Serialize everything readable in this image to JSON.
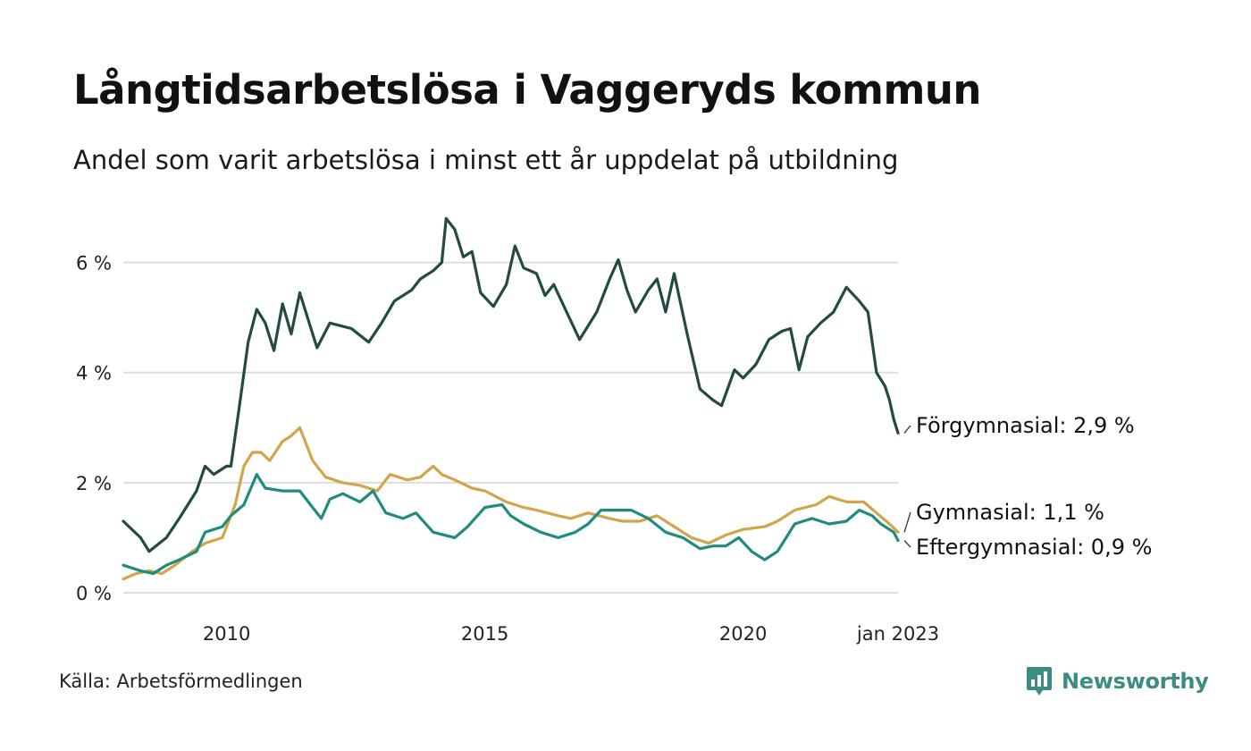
{
  "title": "Långtidsarbetslösa i Vaggeryds kommun",
  "subtitle": "Andel som varit arbetslösa i minst ett år uppdelat på utbildning",
  "source": "Källa: Arbetsförmedlingen",
  "brand": {
    "name": "Newsworthy",
    "logo_icon": "chart-bubble-icon",
    "color": "#3d8c84"
  },
  "chart_data": {
    "type": "line",
    "x_ticks": [
      {
        "label": "2010",
        "value": "2010-01"
      },
      {
        "label": "2015",
        "value": "2015-01"
      },
      {
        "label": "2020",
        "value": "2020-01"
      },
      {
        "label": "jan 2023",
        "value": "2023-01"
      }
    ],
    "y_ticks": [
      "0 %",
      "2 %",
      "4 %",
      "6 %"
    ],
    "ylim": [
      0,
      7
    ],
    "grid": "horizontal",
    "x_start": "2008-01",
    "x_end": "2023-01",
    "series": [
      {
        "name": "Förgymnasial",
        "end_label": "Förgymnasial: 2,9 %",
        "color": "#234a44",
        "keypoints": [
          [
            "2008-01",
            1.3
          ],
          [
            "2008-05",
            1.0
          ],
          [
            "2008-07",
            0.75
          ],
          [
            "2008-11",
            1.0
          ],
          [
            "2009-02",
            1.35
          ],
          [
            "2009-06",
            1.85
          ],
          [
            "2009-08",
            2.3
          ],
          [
            "2009-10",
            2.15
          ],
          [
            "2010-01",
            2.3
          ],
          [
            "2010-02",
            2.3
          ],
          [
            "2010-04",
            3.4
          ],
          [
            "2010-06",
            4.55
          ],
          [
            "2010-08",
            5.15
          ],
          [
            "2010-10",
            4.9
          ],
          [
            "2010-12",
            4.4
          ],
          [
            "2011-02",
            5.25
          ],
          [
            "2011-04",
            4.7
          ],
          [
            "2011-06",
            5.45
          ],
          [
            "2011-08",
            4.95
          ],
          [
            "2011-10",
            4.45
          ],
          [
            "2012-01",
            4.9
          ],
          [
            "2012-06",
            4.8
          ],
          [
            "2012-10",
            4.55
          ],
          [
            "2013-01",
            4.9
          ],
          [
            "2013-04",
            5.3
          ],
          [
            "2013-08",
            5.5
          ],
          [
            "2013-10",
            5.7
          ],
          [
            "2014-01",
            5.85
          ],
          [
            "2014-03",
            6.0
          ],
          [
            "2014-04",
            6.8
          ],
          [
            "2014-06",
            6.6
          ],
          [
            "2014-08",
            6.1
          ],
          [
            "2014-10",
            6.2
          ],
          [
            "2014-12",
            5.45
          ],
          [
            "2015-03",
            5.2
          ],
          [
            "2015-06",
            5.6
          ],
          [
            "2015-08",
            6.3
          ],
          [
            "2015-10",
            5.9
          ],
          [
            "2016-01",
            5.8
          ],
          [
            "2016-03",
            5.4
          ],
          [
            "2016-05",
            5.6
          ],
          [
            "2016-08",
            5.1
          ],
          [
            "2016-11",
            4.6
          ],
          [
            "2017-03",
            5.1
          ],
          [
            "2017-06",
            5.7
          ],
          [
            "2017-08",
            6.05
          ],
          [
            "2017-10",
            5.5
          ],
          [
            "2017-12",
            5.1
          ],
          [
            "2018-03",
            5.5
          ],
          [
            "2018-05",
            5.7
          ],
          [
            "2018-07",
            5.1
          ],
          [
            "2018-09",
            5.8
          ],
          [
            "2018-12",
            4.7
          ],
          [
            "2019-03",
            3.7
          ],
          [
            "2019-06",
            3.5
          ],
          [
            "2019-08",
            3.4
          ],
          [
            "2019-11",
            4.05
          ],
          [
            "2020-01",
            3.9
          ],
          [
            "2020-04",
            4.15
          ],
          [
            "2020-07",
            4.6
          ],
          [
            "2020-10",
            4.75
          ],
          [
            "2020-12",
            4.8
          ],
          [
            "2021-02",
            4.05
          ],
          [
            "2021-04",
            4.65
          ],
          [
            "2021-07",
            4.9
          ],
          [
            "2021-10",
            5.1
          ],
          [
            "2022-01",
            5.55
          ],
          [
            "2022-04",
            5.3
          ],
          [
            "2022-06",
            5.1
          ],
          [
            "2022-08",
            4.0
          ],
          [
            "2022-10",
            3.75
          ],
          [
            "2022-11",
            3.5
          ],
          [
            "2022-12",
            3.15
          ],
          [
            "2023-01",
            2.9
          ]
        ]
      },
      {
        "name": "Gymnasial",
        "end_label": "Gymnasial: 1,1 %",
        "color": "#d4a44c",
        "keypoints": [
          [
            "2008-01",
            0.25
          ],
          [
            "2008-04",
            0.35
          ],
          [
            "2008-07",
            0.4
          ],
          [
            "2008-10",
            0.35
          ],
          [
            "2009-01",
            0.5
          ],
          [
            "2009-05",
            0.75
          ],
          [
            "2009-08",
            0.9
          ],
          [
            "2009-12",
            1.0
          ],
          [
            "2010-03",
            1.6
          ],
          [
            "2010-05",
            2.3
          ],
          [
            "2010-07",
            2.55
          ],
          [
            "2010-09",
            2.55
          ],
          [
            "2010-11",
            2.4
          ],
          [
            "2011-02",
            2.75
          ],
          [
            "2011-04",
            2.85
          ],
          [
            "2011-06",
            3.0
          ],
          [
            "2011-09",
            2.4
          ],
          [
            "2011-12",
            2.1
          ],
          [
            "2012-04",
            2.0
          ],
          [
            "2012-08",
            1.95
          ],
          [
            "2012-12",
            1.85
          ],
          [
            "2013-03",
            2.15
          ],
          [
            "2013-07",
            2.05
          ],
          [
            "2013-10",
            2.1
          ],
          [
            "2014-01",
            2.3
          ],
          [
            "2014-03",
            2.15
          ],
          [
            "2014-06",
            2.05
          ],
          [
            "2014-10",
            1.9
          ],
          [
            "2015-01",
            1.85
          ],
          [
            "2015-06",
            1.65
          ],
          [
            "2015-10",
            1.55
          ],
          [
            "2016-01",
            1.5
          ],
          [
            "2016-06",
            1.4
          ],
          [
            "2016-09",
            1.35
          ],
          [
            "2017-01",
            1.45
          ],
          [
            "2017-06",
            1.35
          ],
          [
            "2017-09",
            1.3
          ],
          [
            "2018-01",
            1.3
          ],
          [
            "2018-05",
            1.4
          ],
          [
            "2018-09",
            1.2
          ],
          [
            "2019-01",
            1.0
          ],
          [
            "2019-05",
            0.9
          ],
          [
            "2019-09",
            1.05
          ],
          [
            "2020-01",
            1.15
          ],
          [
            "2020-06",
            1.2
          ],
          [
            "2020-09",
            1.3
          ],
          [
            "2021-01",
            1.5
          ],
          [
            "2021-06",
            1.6
          ],
          [
            "2021-09",
            1.75
          ],
          [
            "2022-01",
            1.65
          ],
          [
            "2022-05",
            1.65
          ],
          [
            "2022-08",
            1.45
          ],
          [
            "2022-11",
            1.25
          ],
          [
            "2023-01",
            1.1
          ]
        ]
      },
      {
        "name": "Eftergymnasial",
        "end_label": "Eftergymnasial: 0,9 %",
        "color": "#1e8c7e",
        "keypoints": [
          [
            "2008-01",
            0.5
          ],
          [
            "2008-05",
            0.4
          ],
          [
            "2008-08",
            0.35
          ],
          [
            "2008-11",
            0.5
          ],
          [
            "2009-02",
            0.6
          ],
          [
            "2009-06",
            0.75
          ],
          [
            "2009-08",
            1.1
          ],
          [
            "2009-12",
            1.2
          ],
          [
            "2010-02",
            1.4
          ],
          [
            "2010-05",
            1.6
          ],
          [
            "2010-08",
            2.15
          ],
          [
            "2010-10",
            1.9
          ],
          [
            "2011-02",
            1.85
          ],
          [
            "2011-06",
            1.85
          ],
          [
            "2011-09",
            1.55
          ],
          [
            "2011-11",
            1.35
          ],
          [
            "2012-01",
            1.7
          ],
          [
            "2012-04",
            1.8
          ],
          [
            "2012-08",
            1.65
          ],
          [
            "2012-11",
            1.85
          ],
          [
            "2013-02",
            1.45
          ],
          [
            "2013-06",
            1.35
          ],
          [
            "2013-09",
            1.45
          ],
          [
            "2014-01",
            1.1
          ],
          [
            "2014-06",
            1.0
          ],
          [
            "2014-09",
            1.2
          ],
          [
            "2015-01",
            1.55
          ],
          [
            "2015-05",
            1.6
          ],
          [
            "2015-07",
            1.4
          ],
          [
            "2015-10",
            1.25
          ],
          [
            "2016-02",
            1.1
          ],
          [
            "2016-06",
            1.0
          ],
          [
            "2016-10",
            1.1
          ],
          [
            "2017-01",
            1.25
          ],
          [
            "2017-04",
            1.5
          ],
          [
            "2017-08",
            1.5
          ],
          [
            "2017-11",
            1.5
          ],
          [
            "2018-03",
            1.35
          ],
          [
            "2018-07",
            1.1
          ],
          [
            "2018-11",
            1.0
          ],
          [
            "2019-03",
            0.8
          ],
          [
            "2019-06",
            0.85
          ],
          [
            "2019-09",
            0.85
          ],
          [
            "2019-12",
            1.0
          ],
          [
            "2020-03",
            0.75
          ],
          [
            "2020-06",
            0.6
          ],
          [
            "2020-09",
            0.75
          ],
          [
            "2021-01",
            1.25
          ],
          [
            "2021-05",
            1.35
          ],
          [
            "2021-09",
            1.25
          ],
          [
            "2022-01",
            1.3
          ],
          [
            "2022-04",
            1.5
          ],
          [
            "2022-07",
            1.4
          ],
          [
            "2022-09",
            1.25
          ],
          [
            "2022-12",
            1.1
          ],
          [
            "2023-01",
            0.95
          ]
        ]
      }
    ]
  }
}
